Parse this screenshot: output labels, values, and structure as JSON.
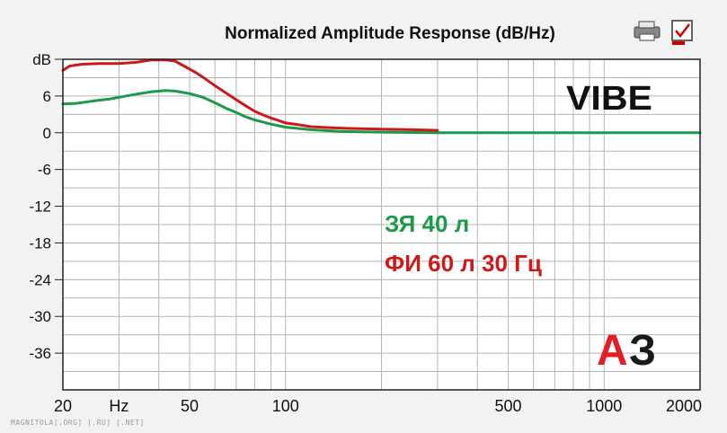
{
  "chart_data": {
    "type": "line",
    "title": "Normalized Amplitude Response (dB/Hz)",
    "xscale": "log",
    "xlim": [
      20,
      2000
    ],
    "ylim": [
      -42,
      12
    ],
    "x_ticks": [
      {
        "value": 20,
        "label": "20"
      },
      {
        "value": 30,
        "label": "Hz"
      },
      {
        "value": 50,
        "label": "50"
      },
      {
        "value": 100,
        "label": "100"
      },
      {
        "value": 500,
        "label": "500"
      },
      {
        "value": 1000,
        "label": "1000"
      },
      {
        "value": 2000,
        "label": "2000"
      }
    ],
    "y_ticks": [
      {
        "value": 12,
        "label": "dB"
      },
      {
        "value": 6,
        "label": "6"
      },
      {
        "value": 0,
        "label": "0"
      },
      {
        "value": -6,
        "label": "-6"
      },
      {
        "value": -12,
        "label": "-12"
      },
      {
        "value": -18,
        "label": "-18"
      },
      {
        "value": -24,
        "label": "-24"
      },
      {
        "value": -30,
        "label": "-30"
      },
      {
        "value": -36,
        "label": "-36"
      }
    ],
    "grid": true,
    "legend": "center",
    "series": [
      {
        "name": "ФИ 60 л 30 Гц",
        "color": "#cc1a1a",
        "x": [
          20,
          21,
          23,
          26,
          30,
          34,
          38,
          42,
          45,
          48,
          52,
          56,
          60,
          65,
          70,
          75,
          80,
          85,
          90,
          95,
          100,
          110,
          120,
          140,
          160,
          200,
          250,
          300
        ],
        "y": [
          10.2,
          10.9,
          11.2,
          11.3,
          11.3,
          11.5,
          11.9,
          11.9,
          11.7,
          10.9,
          9.9,
          8.8,
          7.7,
          6.5,
          5.4,
          4.4,
          3.5,
          2.9,
          2.4,
          2.0,
          1.6,
          1.3,
          1.0,
          0.8,
          0.7,
          0.6,
          0.5,
          0.4
        ]
      },
      {
        "name": "ЗЯ 40 л",
        "color": "#1a9a4a",
        "x": [
          20,
          22,
          25,
          28,
          30,
          34,
          38,
          42,
          45,
          50,
          55,
          60,
          65,
          70,
          75,
          80,
          90,
          100,
          120,
          150,
          200,
          300,
          500,
          1000,
          2000
        ],
        "y": [
          4.7,
          4.8,
          5.2,
          5.5,
          5.8,
          6.3,
          6.7,
          6.9,
          6.8,
          6.4,
          5.8,
          4.9,
          4.0,
          3.3,
          2.6,
          2.1,
          1.4,
          0.9,
          0.5,
          0.2,
          0.1,
          0.0,
          0.0,
          0.0,
          0.0
        ]
      }
    ],
    "annotations": [
      "VIBE",
      "ЗЯ 40 л",
      "ФИ 60 л 30 Гц"
    ]
  },
  "logo": {
    "text": "АЗ",
    "accent": "#e01e24",
    "dark": "#1a1a1a"
  },
  "watermark": "MAGNITOLA[.ORG] [.RU] [.NET]",
  "colors": {
    "plot_bg": "#ffffff",
    "grid": "#b5b5b5",
    "frame": "#222222"
  }
}
